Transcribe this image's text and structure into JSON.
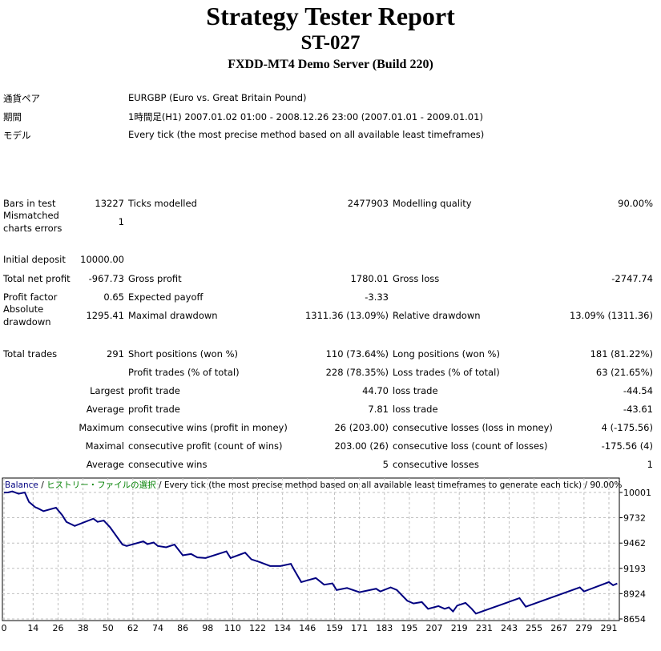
{
  "header": {
    "title": "Strategy Tester Report",
    "subtitle": "ST-027",
    "server": "FXDD-MT4 Demo Server (Build 220)"
  },
  "info": [
    {
      "label": "通貨ペア",
      "value": "EURGBP (Euro vs. Great Britain Pound)"
    },
    {
      "label": "期間",
      "value": "1時間足(H1) 2007.01.02 01:00 - 2008.12.26 23:00 (2007.01.01 - 2009.01.01)"
    },
    {
      "label": "モデル",
      "value": "Every tick (the most precise method based on all available least timeframes)"
    }
  ],
  "stats": [
    [
      "Bars in test",
      "13227",
      "Ticks modelled",
      "2477903",
      "Modelling quality",
      "90.00%"
    ],
    [
      "Mismatched\ncharts errors",
      "1",
      "",
      "",
      "",
      ""
    ],
    [
      "Initial deposit",
      "10000.00",
      "",
      "",
      "",
      ""
    ],
    [
      "Total net profit",
      "-967.73",
      "Gross profit",
      "1780.01",
      "Gross loss",
      "-2747.74"
    ],
    [
      "Profit factor",
      "0.65",
      "Expected payoff",
      "-3.33",
      "",
      ""
    ],
    [
      "Absolute\ndrawdown",
      "1295.41",
      "Maximal drawdown",
      "1311.36 (13.09%)",
      "Relative drawdown",
      "13.09% (1311.36)"
    ],
    [
      "Total trades",
      "291",
      "Short positions (won %)",
      "110 (73.64%)",
      "Long positions (won %)",
      "181 (81.22%)"
    ],
    [
      "",
      "",
      "Profit trades (% of total)",
      "228 (78.35%)",
      "Loss trades (% of total)",
      "63 (21.65%)"
    ],
    [
      "",
      "Largest",
      "profit trade",
      "44.70",
      "loss trade",
      "-44.54"
    ],
    [
      "",
      "Average",
      "profit trade",
      "7.81",
      "loss trade",
      "-43.61"
    ],
    [
      "",
      "Maximum",
      "consecutive wins (profit in money)",
      "26 (203.00)",
      "consecutive losses (loss in money)",
      "4 (-175.56)"
    ],
    [
      "",
      "Maximal",
      "consecutive profit (count of wins)",
      "203.00 (26)",
      "consecutive loss (count of losses)",
      "-175.56 (4)"
    ],
    [
      "",
      "Average",
      "consecutive wins",
      "5",
      "consecutive losses",
      "1"
    ]
  ],
  "chart_data": {
    "type": "line",
    "legend": {
      "series": "Balance",
      "sep1": " / ",
      "history": "ヒストリー・ファイルの選択",
      "sep2": " / ",
      "description": "Every tick (the most precise method based on all available least timeframes to generate each tick) / 90.00%"
    },
    "colors": {
      "line": "#000080",
      "history": "#008000",
      "grid": "#c0c0c0"
    },
    "xlim": [
      0,
      295
    ],
    "ylim": [
      8654,
      10060
    ],
    "x_ticks": [
      0,
      14,
      26,
      38,
      50,
      62,
      74,
      86,
      98,
      110,
      122,
      134,
      146,
      159,
      171,
      183,
      195,
      207,
      219,
      231,
      243,
      255,
      267,
      279,
      291
    ],
    "y_ticks": [
      10001,
      9732,
      9462,
      9193,
      8924,
      8654
    ],
    "series": [
      {
        "name": "Balance",
        "x": [
          0,
          2,
          4,
          7,
          10,
          12,
          15,
          16,
          19,
          25,
          28,
          30,
          34,
          43,
          45,
          48,
          51,
          57,
          59,
          67,
          69,
          72,
          74,
          78,
          82,
          86,
          90,
          93,
          97,
          107,
          109,
          116,
          119,
          123,
          128,
          133,
          138,
          140,
          143,
          150,
          154,
          158,
          160,
          165,
          171,
          179,
          181,
          186,
          189,
          194,
          197,
          201,
          204,
          209,
          212,
          214,
          216,
          218,
          222,
          225,
          227,
          248,
          251,
          277,
          279,
          291,
          293,
          295
        ],
        "y": [
          10000,
          10001,
          10012,
          9987,
          10001,
          9901,
          9844,
          9835,
          9802,
          9839,
          9759,
          9688,
          9645,
          9722,
          9688,
          9702,
          9631,
          9446,
          9431,
          9480,
          9451,
          9468,
          9431,
          9417,
          9446,
          9332,
          9346,
          9309,
          9303,
          9374,
          9303,
          9360,
          9289,
          9260,
          9218,
          9218,
          9241,
          9161,
          9047,
          9090,
          9019,
          9033,
          8962,
          8984,
          8939,
          8976,
          8947,
          8990,
          8962,
          8848,
          8819,
          8834,
          8762,
          8791,
          8762,
          8777,
          8734,
          8796,
          8825,
          8762,
          8711,
          8876,
          8785,
          8990,
          8947,
          9047,
          9013,
          9032
        ]
      }
    ]
  }
}
